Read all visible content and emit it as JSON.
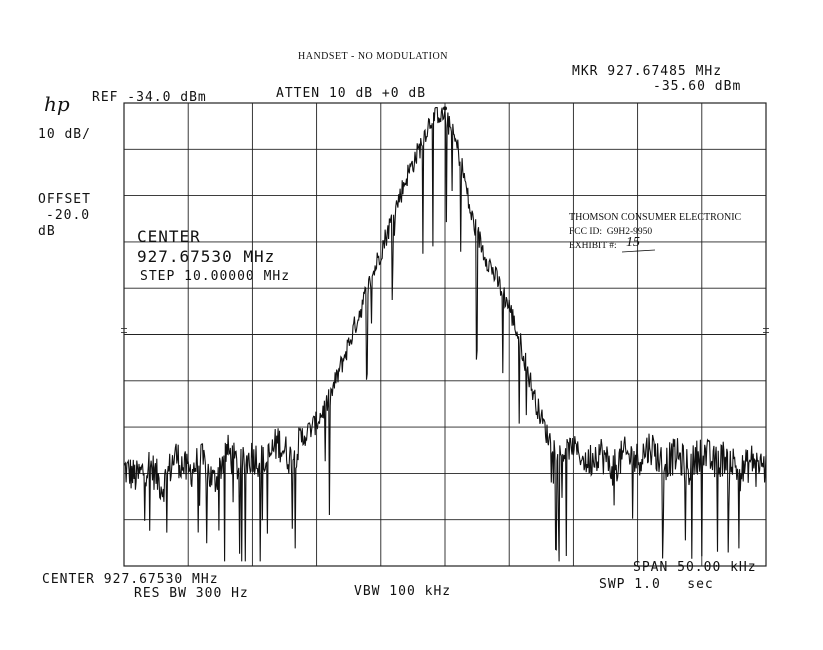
{
  "header": {
    "title": "HANDSET - NO MODULATION",
    "logo": "hp",
    "ref": "REF -34.0 dBm",
    "atten": "ATTEN 10 dB +0 dB",
    "marker_freq": "MKR 927.67485 MHz",
    "marker_level": "-35.60 dBm",
    "scale": "10 dB/",
    "offset_label": "OFFSET",
    "offset_value": "-20.0",
    "offset_unit": "dB"
  },
  "center_box": {
    "label": "CENTER",
    "freq": "927.67530 MHz",
    "step": "STEP 10.00000 MHz"
  },
  "stamp": {
    "company": "THOMSON CONSUMER ELECTRONIC",
    "fcc": "FCC ID:  G9H2-9950",
    "exhibit_label": "EXHIBIT #:",
    "exhibit_value": "15"
  },
  "footer": {
    "center": "CENTER 927.67530 MHz",
    "span": "SPAN 50.00 kHz",
    "res_bw": "RES BW 300 Hz",
    "vbw": "VBW 100 kHz",
    "sweep": "SWP 1.0   sec"
  },
  "chart_data": {
    "type": "line",
    "x_unit": "kHz offset from center",
    "y_unit": "dBm",
    "xlim": [
      -25,
      25
    ],
    "ylim": [
      -134,
      -34
    ],
    "grid": true,
    "x": [
      -25,
      -24,
      -23,
      -22,
      -21,
      -20,
      -19,
      -18,
      -17,
      -16,
      -15,
      -14,
      -13,
      -12,
      -11,
      -10,
      -9,
      -8,
      -7,
      -6,
      -5,
      -4,
      -3,
      -2,
      -1.5,
      -1,
      -0.5,
      0,
      0.5,
      1,
      1.5,
      2,
      3,
      4,
      5,
      6,
      7,
      8,
      9,
      10,
      11,
      12,
      13,
      14,
      15,
      16,
      17,
      18,
      19,
      20,
      21,
      22,
      23,
      24,
      25
    ],
    "y": [
      -113,
      -115,
      -112,
      -117,
      -110,
      -114,
      -111,
      -116,
      -109,
      -113,
      -110,
      -112,
      -107,
      -111,
      -106,
      -103,
      -98,
      -90,
      -82,
      -74,
      -66,
      -58,
      -50,
      -44,
      -40,
      -37,
      -36,
      -37,
      -40,
      -44,
      -50,
      -58,
      -66,
      -72,
      -78,
      -87,
      -98,
      -106,
      -110,
      -108,
      -112,
      -109,
      -113,
      -110,
      -111,
      -108,
      -112,
      -110,
      -113,
      -109,
      -112,
      -110,
      -114,
      -111,
      -113
    ]
  }
}
